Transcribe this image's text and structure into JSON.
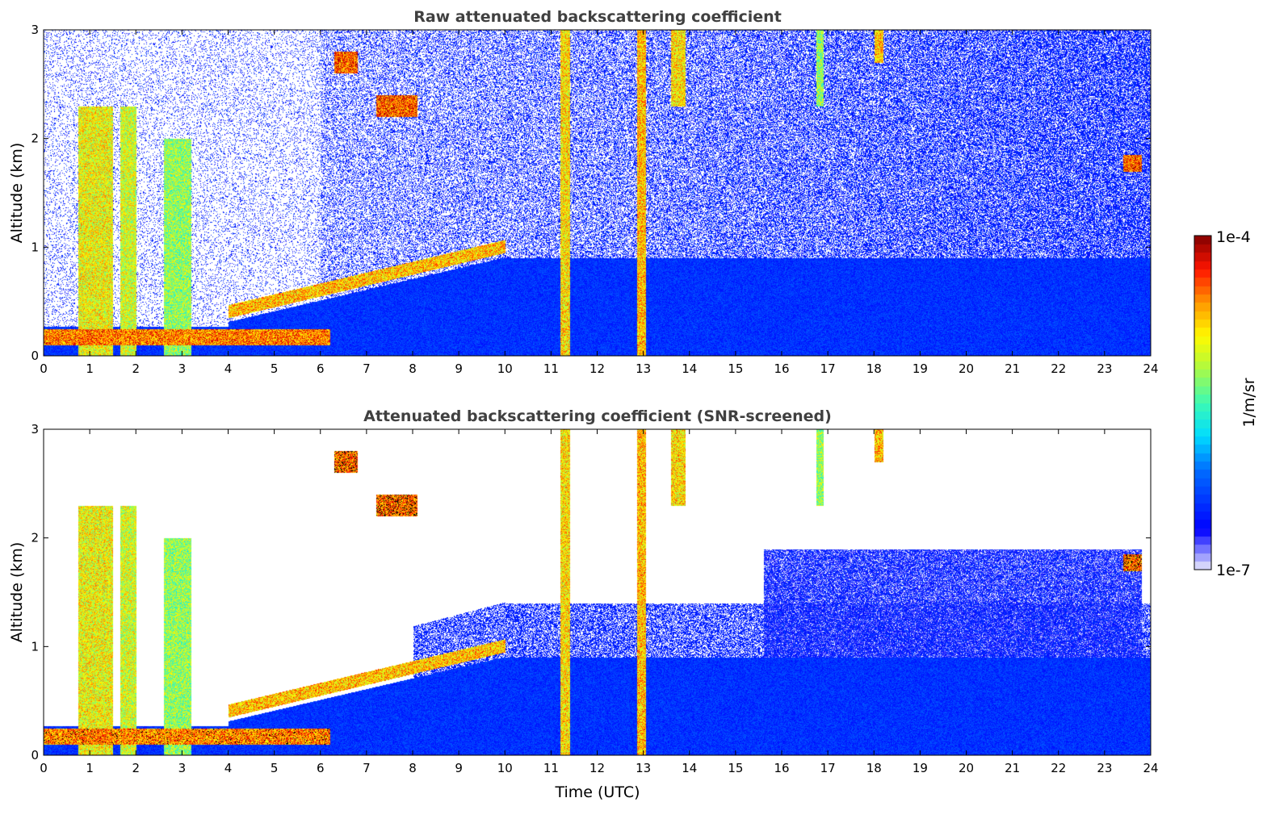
{
  "chart_data": [
    {
      "type": "heatmap",
      "title": "Raw attenuated backscattering coefficient",
      "xlabel": "",
      "ylabel": "Altitude (km)",
      "xlim": [
        0,
        24
      ],
      "ylim": [
        0,
        3
      ],
      "xticks": [
        "0",
        "1",
        "2",
        "3",
        "4",
        "5",
        "6",
        "7",
        "8",
        "9",
        "10",
        "11",
        "12",
        "13",
        "14",
        "15",
        "16",
        "17",
        "18",
        "19",
        "20",
        "21",
        "22",
        "23",
        "24"
      ],
      "yticks": [
        "0",
        "1",
        "2",
        "3"
      ],
      "screened": false
    },
    {
      "type": "heatmap",
      "title": "Attenuated backscattering coefficient (SNR-screened)",
      "xlabel": "Time (UTC)",
      "ylabel": "Altitude (km)",
      "xlim": [
        0,
        24
      ],
      "ylim": [
        0,
        3
      ],
      "xticks": [
        "0",
        "1",
        "2",
        "3",
        "4",
        "5",
        "6",
        "7",
        "8",
        "9",
        "10",
        "11",
        "12",
        "13",
        "14",
        "15",
        "16",
        "17",
        "18",
        "19",
        "20",
        "21",
        "22",
        "23",
        "24"
      ],
      "yticks": [
        "0",
        "1",
        "2",
        "3"
      ],
      "screened": true
    }
  ],
  "colorbar": {
    "label": "1/m/sr",
    "min_label": "1e-7",
    "max_label": "1e-4",
    "min_log": -7,
    "max_log": -4
  },
  "features": [
    {
      "name": "surface-aerosol-layer",
      "t": [
        0,
        6.2
      ],
      "z": [
        0.1,
        0.25
      ],
      "log": -4.1
    },
    {
      "name": "rising-aerosol-layer",
      "t": [
        4,
        10
      ],
      "z": [
        0.35,
        1.0
      ],
      "log": -4.3,
      "slope": true
    },
    {
      "name": "convective-column-1",
      "t": [
        0.75,
        1.5
      ],
      "z": [
        0,
        2.3
      ],
      "log": -4.5
    },
    {
      "name": "convective-column-2",
      "t": [
        1.65,
        2.0
      ],
      "z": [
        0,
        2.3
      ],
      "log": -4.6
    },
    {
      "name": "convective-column-3",
      "t": [
        2.6,
        3.2
      ],
      "z": [
        0,
        2.0
      ],
      "log": -4.8
    },
    {
      "name": "cloud-6.5h",
      "t": [
        6.3,
        6.8
      ],
      "z": [
        2.6,
        2.8
      ],
      "log": -4.0
    },
    {
      "name": "cloud-7.5h",
      "t": [
        7.2,
        8.1
      ],
      "z": [
        2.2,
        2.4
      ],
      "log": -4.0
    },
    {
      "name": "cloud-23.5h",
      "t": [
        23.4,
        23.8
      ],
      "z": [
        1.7,
        1.85
      ],
      "log": -4.0
    },
    {
      "name": "precip-streak-11h",
      "t": [
        11.2,
        11.4
      ],
      "z": [
        0,
        3
      ],
      "log": -4.4
    },
    {
      "name": "precip-streak-13h",
      "t": [
        12.85,
        13.05
      ],
      "z": [
        0,
        3
      ],
      "log": -4.3
    },
    {
      "name": "virga-13.7h",
      "t": [
        13.6,
        13.9
      ],
      "z": [
        2.3,
        3
      ],
      "log": -4.4
    },
    {
      "name": "virga-16.8h",
      "t": [
        16.75,
        16.9
      ],
      "z": [
        2.3,
        3
      ],
      "log": -4.8
    },
    {
      "name": "virga-18h",
      "t": [
        18.0,
        18.2
      ],
      "z": [
        2.7,
        3
      ],
      "log": -4.3
    }
  ]
}
